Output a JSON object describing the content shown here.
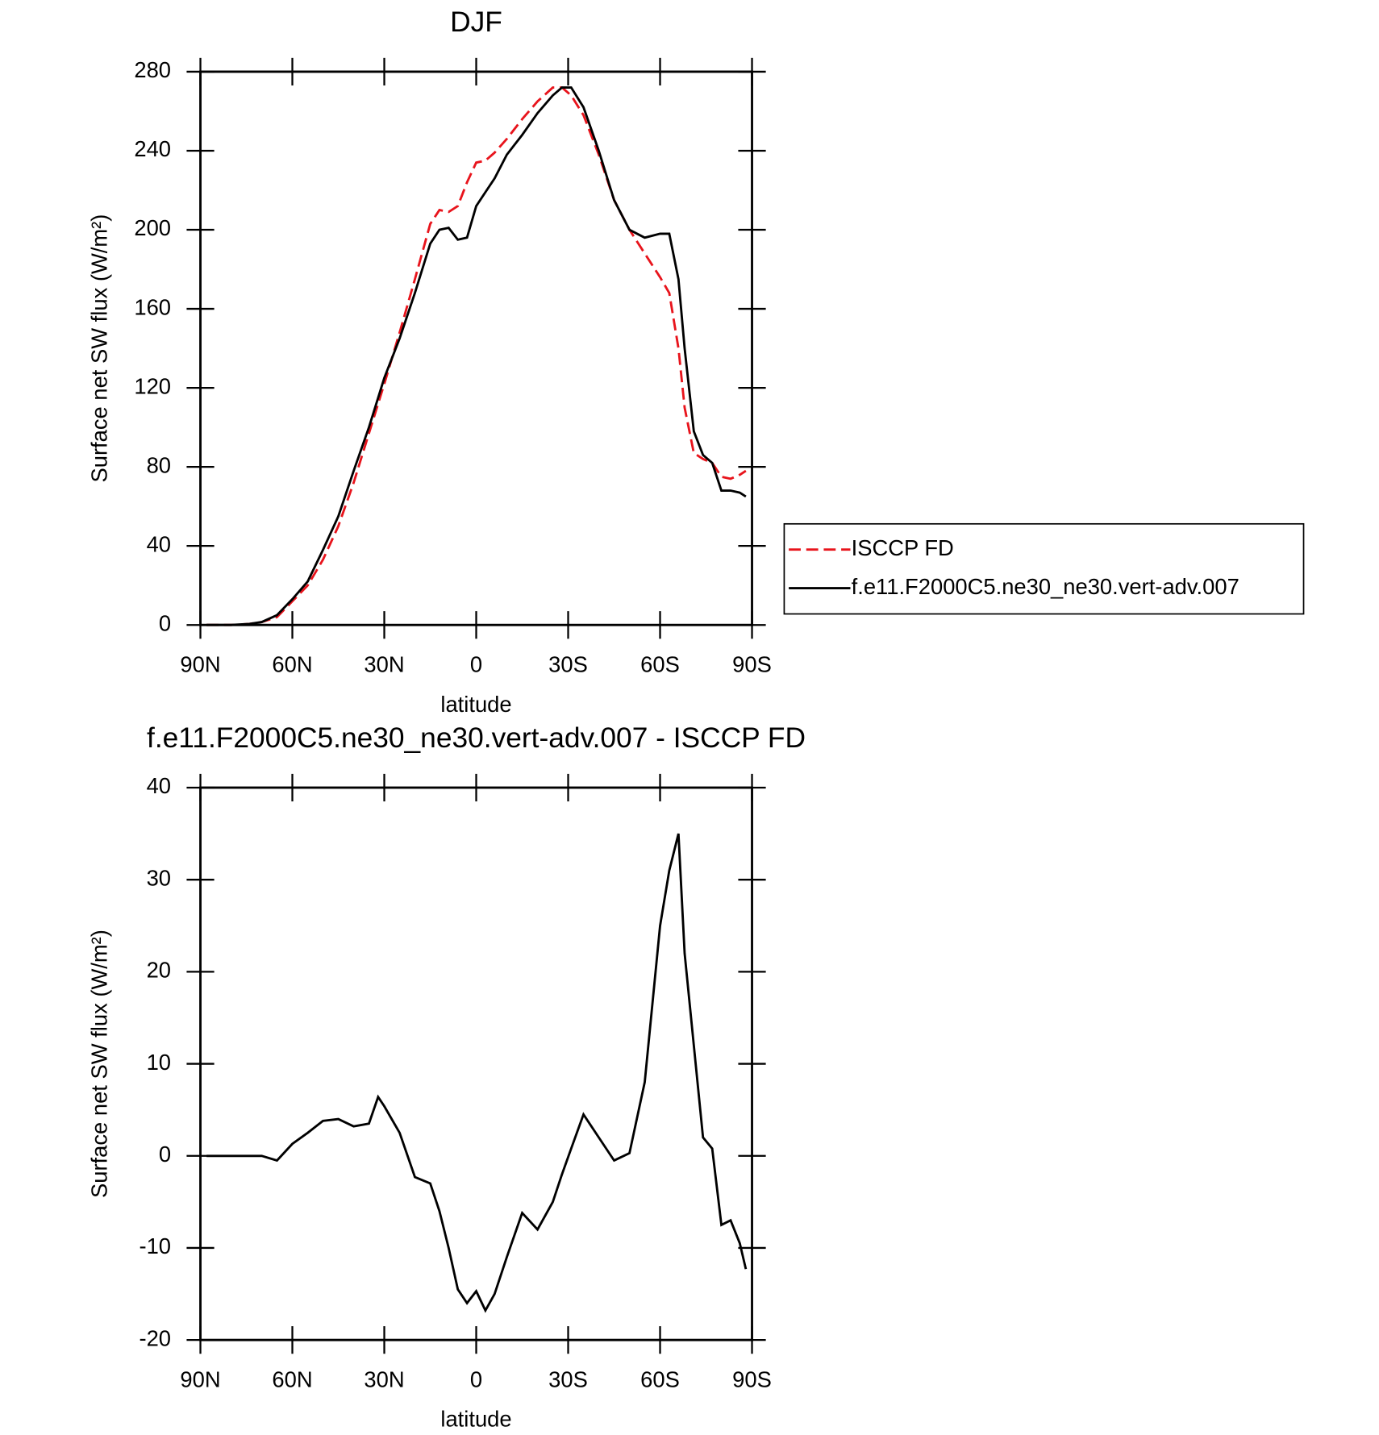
{
  "chart_data": [
    {
      "type": "line",
      "title": "DJF",
      "xlabel": "latitude",
      "ylabel": "Surface net SW flux (W/m²)",
      "x": [
        88,
        80,
        74,
        70,
        65,
        60,
        55,
        50,
        45,
        40,
        35,
        30,
        25,
        20,
        15,
        12,
        9,
        6,
        3,
        0,
        -3,
        -6,
        -10,
        -15,
        -20,
        -25,
        -28,
        -31,
        -35,
        -40,
        -45,
        -50,
        -55,
        -60,
        -63,
        -66,
        -68,
        -71,
        -74,
        -77,
        -80,
        -83,
        -86,
        -88
      ],
      "series": [
        {
          "name": "ISCCP FD",
          "color": "#e8141c",
          "dash": true,
          "values": [
            0,
            0,
            0.5,
            1.5,
            4,
            12,
            20,
            33,
            50,
            72,
            97,
            122,
            148,
            175,
            203,
            210,
            209,
            212,
            224,
            234,
            235,
            239,
            246,
            256,
            265,
            272,
            272,
            268,
            258,
            238,
            215,
            200,
            188,
            176,
            168,
            140,
            110,
            87,
            84,
            82,
            75,
            74,
            76,
            78
          ]
        },
        {
          "name": "f.e11.F2000C5.ne30_ne30.vert-adv.007",
          "color": "#000000",
          "dash": false,
          "values": [
            0,
            0,
            0.5,
            1.5,
            5,
            13,
            22,
            38,
            55,
            78,
            100,
            125,
            145,
            168,
            193,
            200,
            201,
            195,
            196,
            212,
            219,
            226,
            238,
            248,
            259,
            268,
            272,
            272,
            262,
            240,
            215,
            200,
            196,
            198,
            198,
            175,
            140,
            98,
            86,
            82,
            68,
            68,
            67,
            65
          ]
        }
      ],
      "xlim": [
        90,
        -90
      ],
      "xticks": [
        {
          "value": 90,
          "label": "90N"
        },
        {
          "value": 60,
          "label": "60N"
        },
        {
          "value": 30,
          "label": "30N"
        },
        0,
        {
          "value": -30,
          "label": "30S"
        },
        {
          "value": -60,
          "label": "60S"
        },
        {
          "value": -90,
          "label": "90S"
        }
      ],
      "ylim": [
        0,
        280
      ],
      "yticks": [
        0,
        40,
        80,
        120,
        160,
        200,
        240,
        280
      ],
      "legend": "right"
    },
    {
      "type": "line",
      "title": "f.e11.F2000C5.ne30_ne30.vert-adv.007 - ISCCP FD",
      "xlabel": "latitude",
      "ylabel": "Surface net SW flux (W/m²)",
      "x": [
        88,
        80,
        74,
        70,
        65,
        60,
        55,
        50,
        45,
        40,
        35,
        32,
        30,
        25,
        20,
        15,
        12,
        9,
        6,
        3,
        0,
        -3,
        -6,
        -10,
        -15,
        -20,
        -25,
        -28,
        -31,
        -35,
        -40,
        -45,
        -50,
        -55,
        -60,
        -63,
        -66,
        -68,
        -71,
        -74,
        -77,
        -80,
        -83,
        -86,
        -88
      ],
      "series": [
        {
          "color": "#000000",
          "dash": false,
          "values": [
            0,
            0,
            0,
            0,
            -0.5,
            1.3,
            2.5,
            3.8,
            4,
            3.2,
            3.5,
            6.4,
            5.4,
            2.5,
            -2.3,
            -3,
            -6,
            -10,
            -14.5,
            -16,
            -14.7,
            -16.8,
            -15,
            -11,
            -6.2,
            -8,
            -5,
            -2,
            0.8,
            4.5,
            2,
            -0.5,
            0.3,
            8,
            25,
            31,
            35,
            22,
            12,
            2,
            0.8,
            -7.5,
            -7,
            -9.5,
            -12.3
          ]
        }
      ],
      "xlim": [
        90,
        -90
      ],
      "xticks": [
        {
          "value": 90,
          "label": "90N"
        },
        {
          "value": 60,
          "label": "60N"
        },
        {
          "value": 30,
          "label": "30N"
        },
        0,
        {
          "value": -30,
          "label": "30S"
        },
        {
          "value": -60,
          "label": "60S"
        },
        {
          "value": -90,
          "label": "90S"
        }
      ],
      "ylim": [
        -20,
        40
      ],
      "yticks": [
        -20,
        -10,
        0,
        10,
        20,
        30,
        40
      ]
    }
  ]
}
